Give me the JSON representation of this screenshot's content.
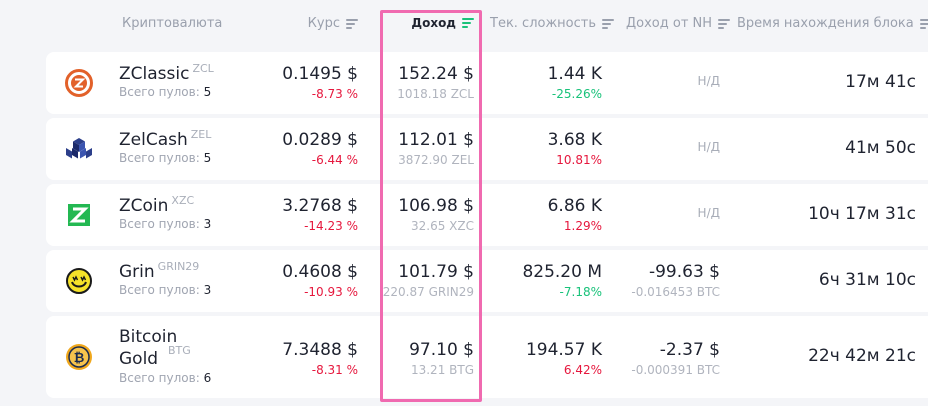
{
  "header": {
    "name": "Криптовалюта",
    "rate": "Курс",
    "profit": "Доход",
    "difficulty": "Тек. сложность",
    "nh_profit": "Доход от NH",
    "block_time": "Время нахождения блока"
  },
  "pools_label": "Всего пулов:",
  "rows": [
    {
      "name": "ZClassic",
      "ticker": "ZCL",
      "pools": "5",
      "rate": "0.1495 $",
      "rate_change": "-8.73 %",
      "profit": "152.24 $",
      "profit_coins": "1018.18 ZCL",
      "difficulty": "1.44 K",
      "difficulty_change": "-25.26%",
      "nh": "Н/Д",
      "nh_sub": "",
      "block_time": "17м 41с",
      "icon": "zclassic-logo-icon"
    },
    {
      "name": "ZelCash",
      "ticker": "ZEL",
      "pools": "5",
      "rate": "0.0289 $",
      "rate_change": "-6.44 %",
      "profit": "112.01 $",
      "profit_coins": "3872.90 ZEL",
      "difficulty": "3.68 K",
      "difficulty_change": "10.81%",
      "nh": "Н/Д",
      "nh_sub": "",
      "block_time": "41м 50с",
      "icon": "zelcash-logo-icon"
    },
    {
      "name": "ZCoin",
      "ticker": "XZC",
      "pools": "3",
      "rate": "3.2768 $",
      "rate_change": "-14.23 %",
      "profit": "106.98 $",
      "profit_coins": "32.65 XZC",
      "difficulty": "6.86 K",
      "difficulty_change": "1.29%",
      "nh": "Н/Д",
      "nh_sub": "",
      "block_time": "10ч 17м 31с",
      "icon": "zcoin-logo-icon"
    },
    {
      "name": "Grin",
      "ticker": "GRIN29",
      "pools": "3",
      "rate": "0.4608 $",
      "rate_change": "-10.93 %",
      "profit": "101.79 $",
      "profit_coins": "220.87 GRIN29",
      "difficulty": "825.20 M",
      "difficulty_change": "-7.18%",
      "nh": "-99.63 $",
      "nh_sub": "-0.016453 BTC",
      "block_time": "6ч 31м 10с",
      "icon": "grin-logo-icon"
    },
    {
      "name": "Bitcoin Gold",
      "ticker": "BTG",
      "pools": "6",
      "rate": "7.3488 $",
      "rate_change": "-8.31 %",
      "profit": "97.10 $",
      "profit_coins": "13.21 BTG",
      "difficulty": "194.57 K",
      "difficulty_change": "6.42%",
      "nh": "-2.37 $",
      "nh_sub": "-0.000391 BTC",
      "block_time": "22ч 42м 21с",
      "icon": "bitcoin-gold-logo-icon"
    }
  ],
  "colors": {
    "negative": "#e6173d",
    "positive": "#19c27a",
    "highlight": "#f06ab0",
    "sort_active": "#19c27a"
  }
}
